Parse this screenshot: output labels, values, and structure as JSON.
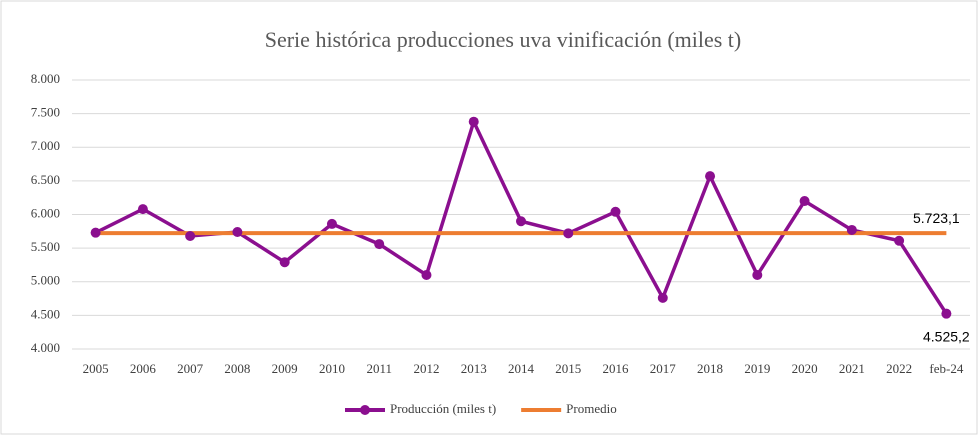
{
  "chart_data": {
    "type": "line",
    "title": "Serie histórica producciones uva vinificación (miles t)",
    "categories": [
      "2005",
      "2006",
      "2007",
      "2008",
      "2009",
      "2010",
      "2011",
      "2012",
      "2013",
      "2014",
      "2015",
      "2016",
      "2017",
      "2018",
      "2019",
      "2020",
      "2021",
      "2022",
      "feb-24"
    ],
    "series": [
      {
        "name": "Producción (miles t)",
        "color": "#8b0f8f",
        "markers": true,
        "values": [
          5730,
          6080,
          5680,
          5740,
          5290,
          5860,
          5560,
          5100,
          7380,
          5900,
          5720,
          6040,
          4760,
          6570,
          5100,
          6200,
          5770,
          5610,
          4525.2
        ],
        "value_labels": [
          null,
          null,
          null,
          null,
          null,
          null,
          null,
          null,
          null,
          null,
          null,
          null,
          null,
          null,
          null,
          null,
          null,
          null,
          "4.525,2"
        ]
      },
      {
        "name": "Promedio",
        "color": "#ed7d31",
        "markers": false,
        "values": [
          5723.1,
          5723.1,
          5723.1,
          5723.1,
          5723.1,
          5723.1,
          5723.1,
          5723.1,
          5723.1,
          5723.1,
          5723.1,
          5723.1,
          5723.1,
          5723.1,
          5723.1,
          5723.1,
          5723.1,
          5723.1,
          5723.1
        ],
        "value_labels": [
          null,
          null,
          null,
          null,
          null,
          null,
          null,
          null,
          null,
          null,
          null,
          null,
          null,
          null,
          null,
          null,
          null,
          null,
          "5.723,1"
        ]
      }
    ],
    "ylim": [
      4000,
      8000
    ],
    "yticks": [
      {
        "value": 4000,
        "label": "4.000"
      },
      {
        "value": 4500,
        "label": "4.500"
      },
      {
        "value": 5000,
        "label": "5.000"
      },
      {
        "value": 5500,
        "label": "5.500"
      },
      {
        "value": 6000,
        "label": "6.000"
      },
      {
        "value": 6500,
        "label": "6.500"
      },
      {
        "value": 7000,
        "label": "7.000"
      },
      {
        "value": 7500,
        "label": "7.500"
      },
      {
        "value": 8000,
        "label": "8.000"
      }
    ],
    "grid": true,
    "legend": "bottom"
  }
}
